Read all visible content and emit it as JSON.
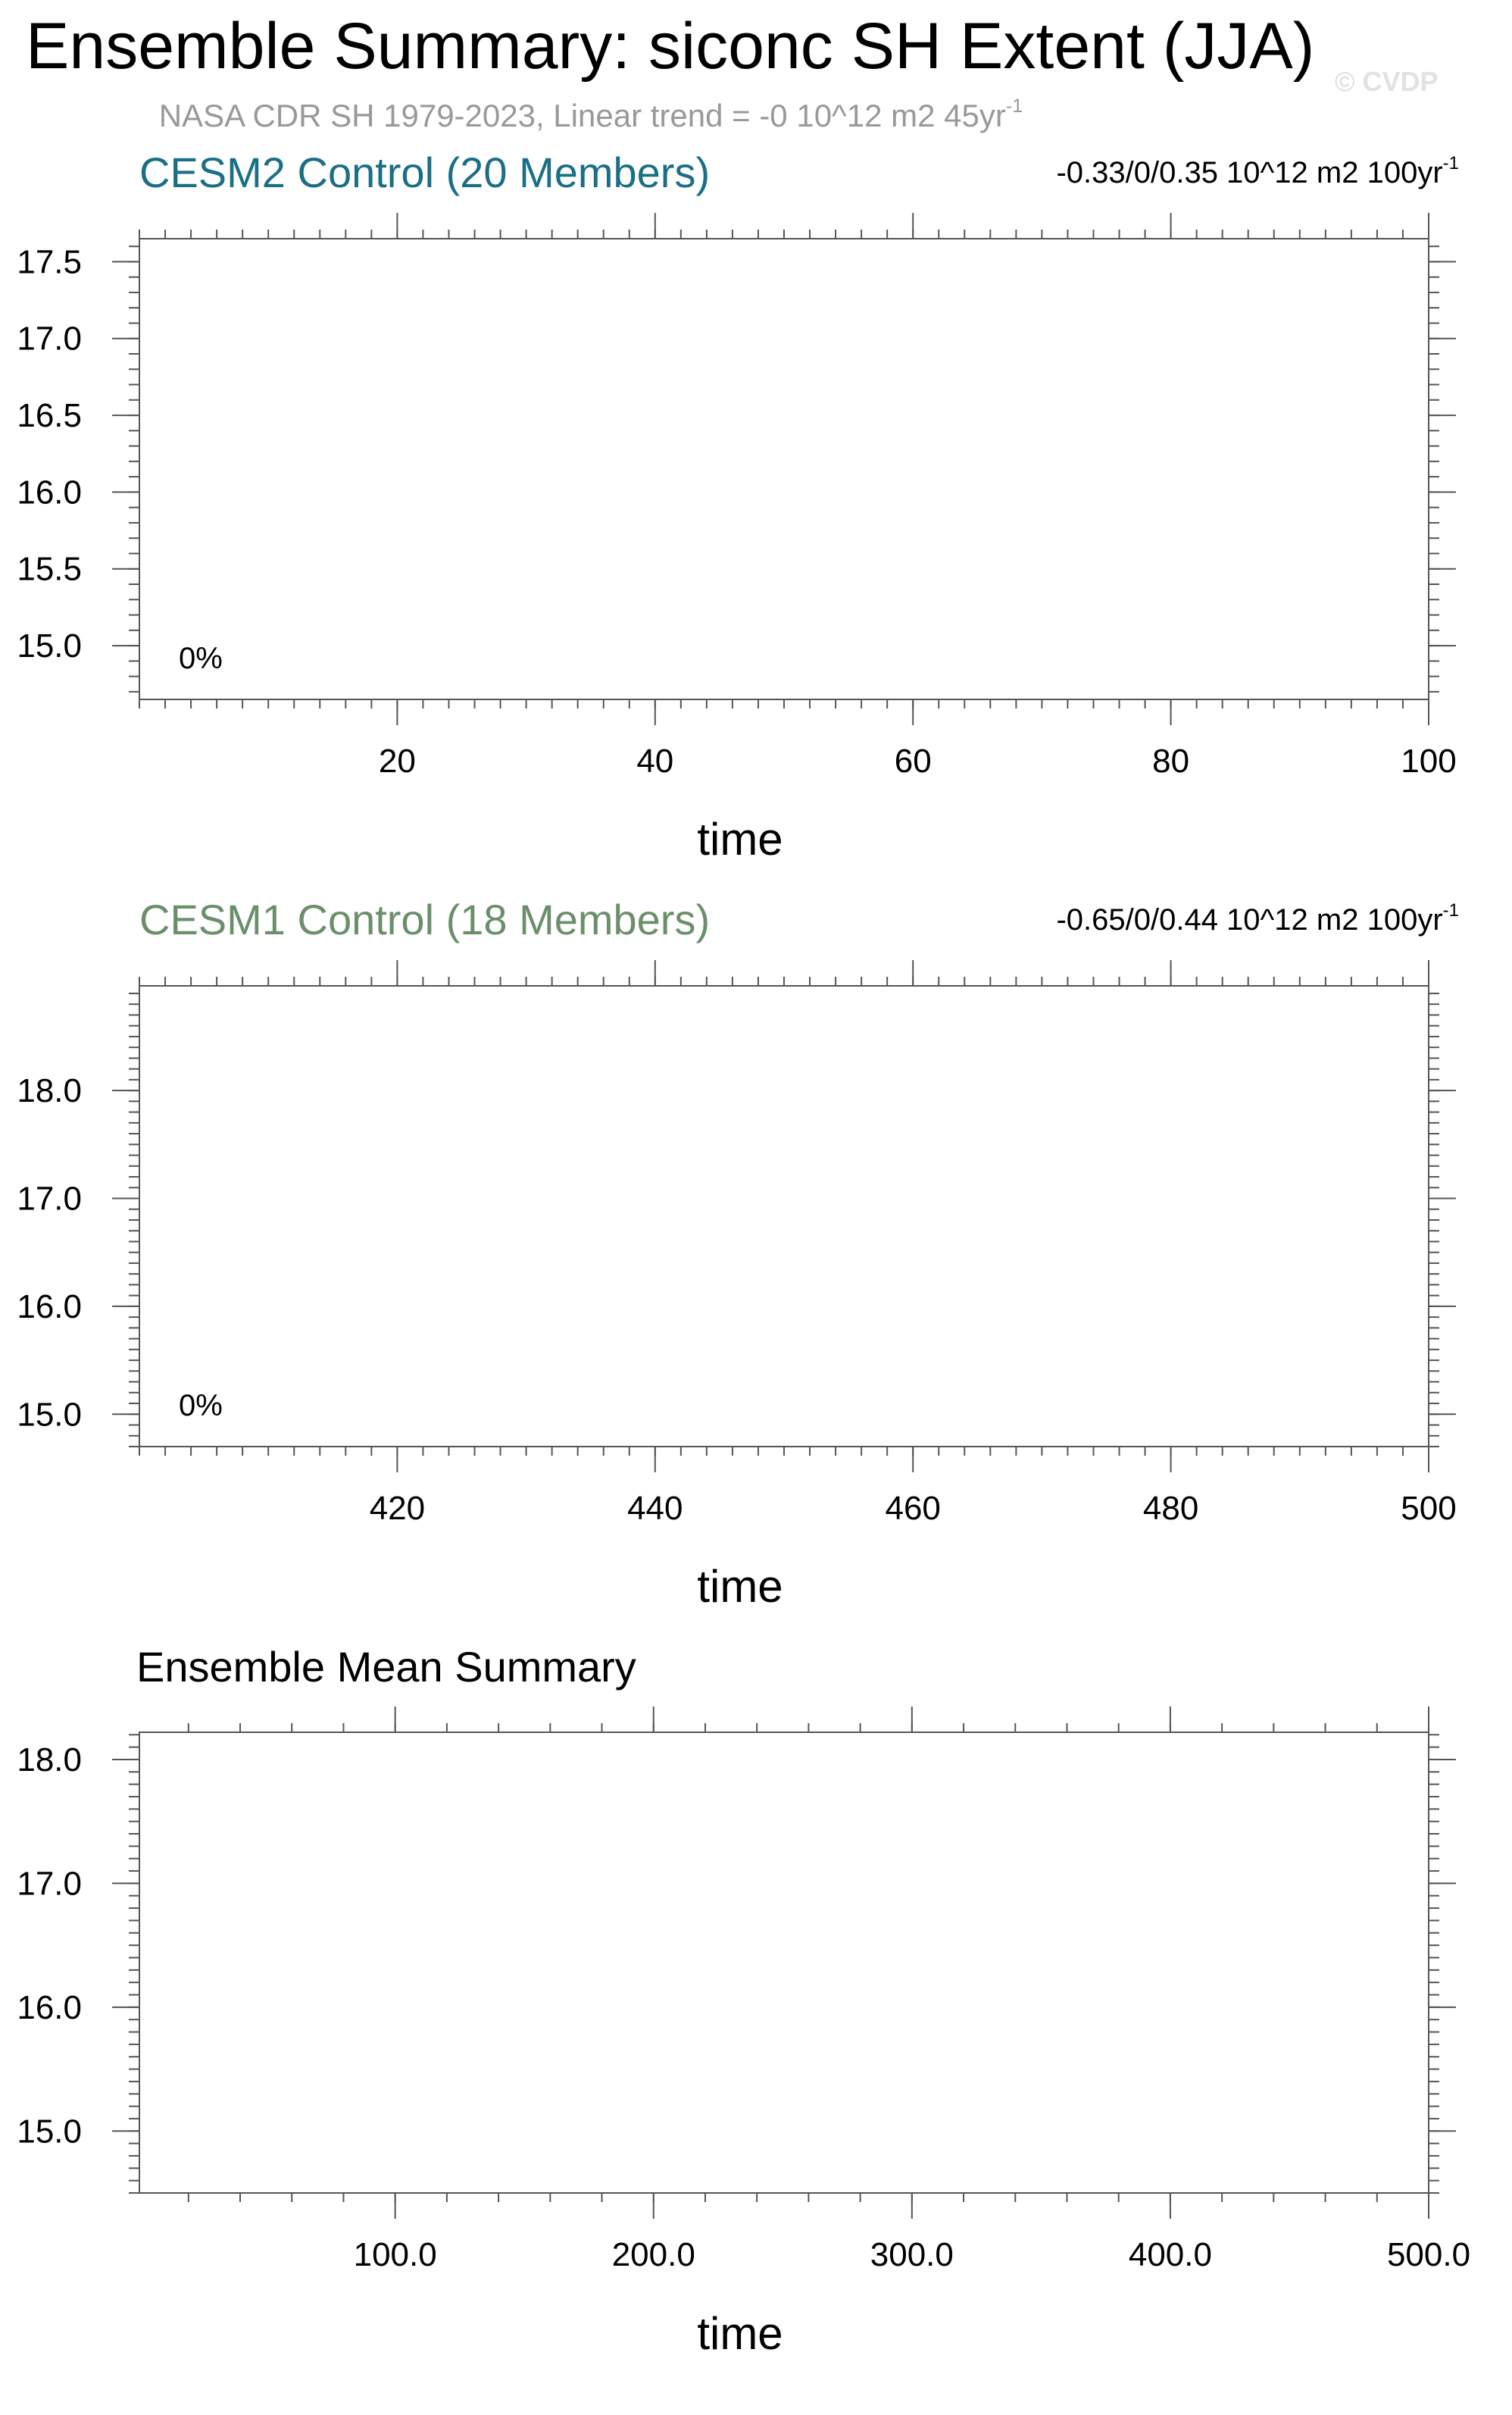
{
  "figure": {
    "title": "Ensemble Summary: siconc SH Extent (JJA)",
    "subtitle_main": "NASA CDR SH 1979-2023, Linear trend = -0 10^12 m2 45yr",
    "subtitle_sup": "-1",
    "watermark": "© CVDP"
  },
  "chart_data": [
    {
      "type": "line",
      "title": "CESM2 Control (20 Members)",
      "title_color": "#1a6f86",
      "range_text": "-0.33/0/0.35 10^12 m2 100yr",
      "range_sup": "-1",
      "xlabel": "time",
      "ylabel": "",
      "xlim": [
        0,
        100
      ],
      "ylim": [
        14.65,
        17.65
      ],
      "xticks": [
        20,
        40,
        60,
        80,
        100
      ],
      "xtick_labels": [
        "20",
        "40",
        "60",
        "80",
        "100"
      ],
      "yticks": [
        15.0,
        15.5,
        16.0,
        16.5,
        17.0,
        17.5
      ],
      "ytick_labels": [
        "15.0",
        "15.5",
        "16.0",
        "16.5",
        "17.0",
        "17.5"
      ],
      "annotation": "0%",
      "series": []
    },
    {
      "type": "line",
      "title": "CESM1 Control (18 Members)",
      "title_color": "#6a8f6a",
      "range_text": "-0.65/0/0.44 10^12 m2 100yr",
      "range_sup": "-1",
      "xlabel": "time",
      "ylabel": "",
      "xlim": [
        400,
        500
      ],
      "ylim": [
        14.7,
        18.97
      ],
      "xticks": [
        420,
        440,
        460,
        480,
        500
      ],
      "xtick_labels": [
        "420",
        "440",
        "460",
        "480",
        "500"
      ],
      "yticks": [
        15.0,
        16.0,
        17.0,
        18.0
      ],
      "ytick_labels": [
        "15.0",
        "16.0",
        "17.0",
        "18.0"
      ],
      "annotation": "0%",
      "series": []
    },
    {
      "type": "line",
      "title": "Ensemble Mean Summary",
      "title_color": "#000000",
      "xlabel": "time",
      "ylabel": "",
      "xlim": [
        1,
        500
      ],
      "ylim": [
        14.5,
        18.22
      ],
      "xticks": [
        100,
        200,
        300,
        400,
        500
      ],
      "xtick_labels": [
        "100.0",
        "200.0",
        "300.0",
        "400.0",
        "500.0"
      ],
      "yticks": [
        15.0,
        16.0,
        17.0,
        18.0
      ],
      "ytick_labels": [
        "15.0",
        "16.0",
        "17.0",
        "18.0"
      ],
      "series": []
    }
  ]
}
